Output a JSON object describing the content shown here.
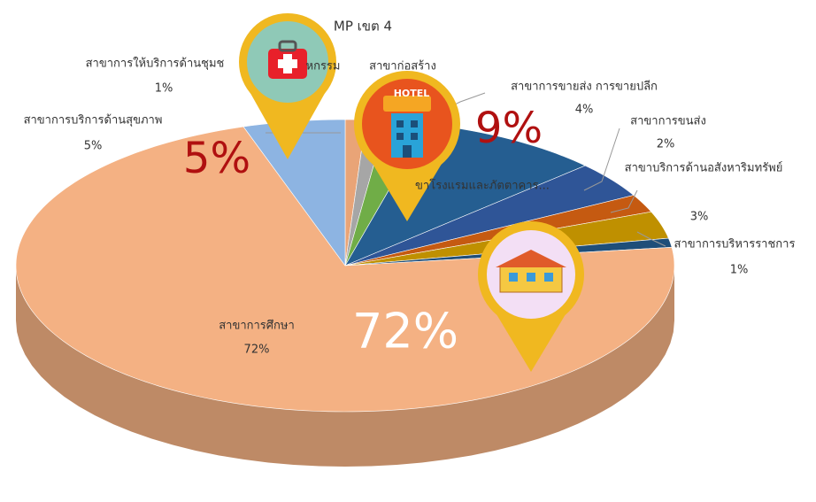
{
  "chart_data": {
    "type": "pie3d",
    "title": "MP เขต 4",
    "categories": [
      "สาขาการให้บริการด้านชุมช",
      "หกรรม",
      "สาขาก่อสร้าง",
      "ขาโรงแรมและภัตตาคาร...",
      "สาขาการขายส่ง การขายปลีก",
      "สาขาการขนส่ง",
      "สาขาบริการด้านอสังหาริมทรัพย์",
      "สาขาการบริหารราชการ",
      "สาขาการศึกษา",
      "สาขาการบริการด้านสุขภาพ"
    ],
    "values": [
      1,
      1,
      2,
      9,
      4,
      2,
      3,
      1,
      72,
      5
    ],
    "value_labels": [
      "1%",
      null,
      null,
      null,
      "4%",
      "2%",
      "3%",
      "1%",
      "72%",
      "5%"
    ],
    "colors": [
      "#e9a477",
      "#a6a6a6",
      "#70ad47",
      "#255e91",
      "#2f5597",
      "#c55a11",
      "#bf9000",
      "#1f4e79",
      "#f4b183",
      "#8db4e2"
    ],
    "annotations": [
      "5%",
      "9%",
      "72%"
    ],
    "icon_text": "HOTEL"
  }
}
